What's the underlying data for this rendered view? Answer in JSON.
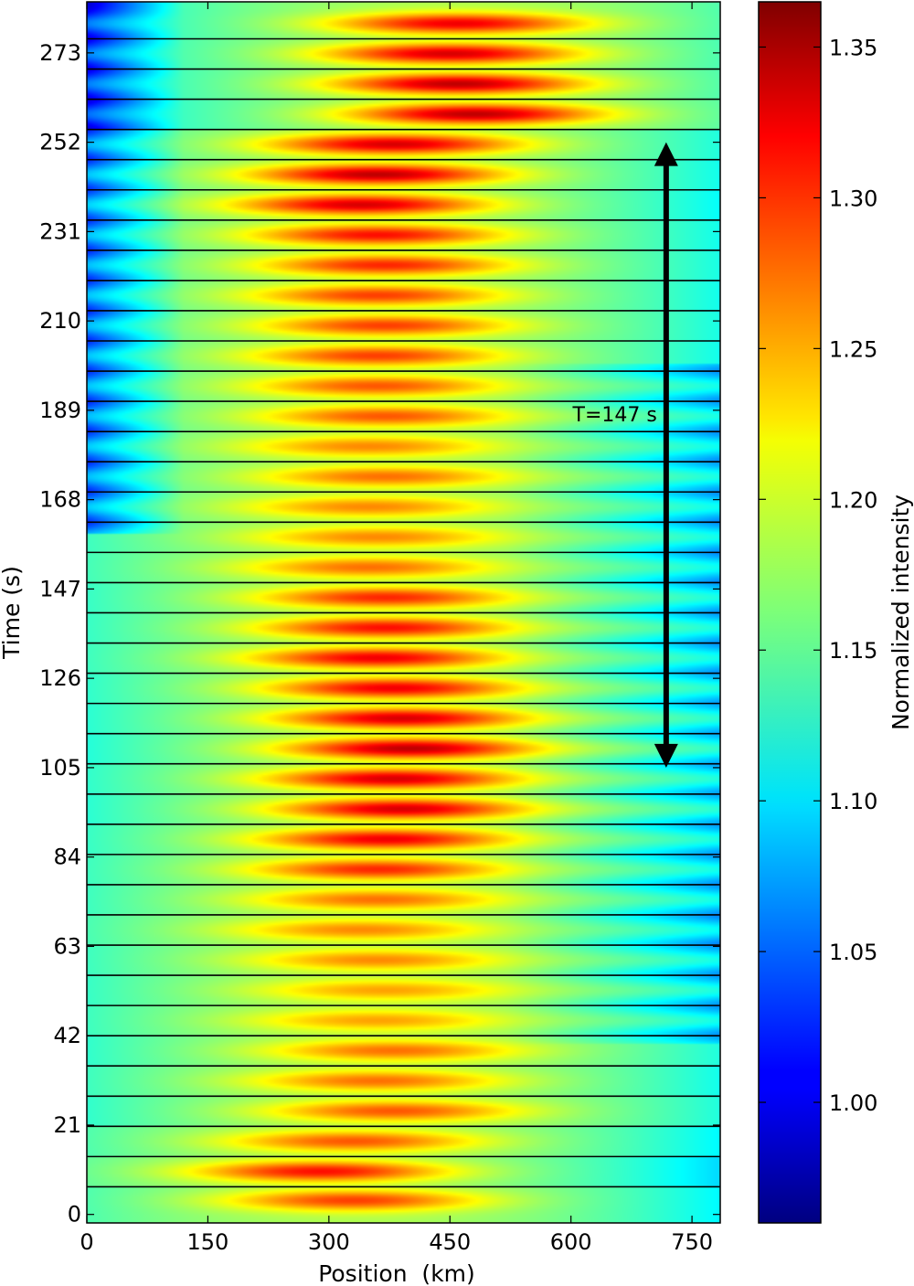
{
  "chart_data": {
    "type": "heatmap",
    "title": "",
    "xlabel": "Position  (km)",
    "ylabel": "Time (s)",
    "xlim": [
      0,
      785
    ],
    "ylim": [
      -2,
      285
    ],
    "x_ticks": [
      0,
      150,
      300,
      450,
      600,
      750
    ],
    "y_ticks": [
      0,
      21,
      42,
      63,
      84,
      105,
      126,
      147,
      168,
      189,
      210,
      231,
      252,
      273
    ],
    "colorbar": {
      "label": "Normalized intensity",
      "range": [
        0.96,
        1.365
      ],
      "ticks": [
        1.0,
        1.05,
        1.1,
        1.15,
        1.2,
        1.25,
        1.3,
        1.35
      ],
      "tick_labels": [
        "1.00",
        "1.05",
        "1.10",
        "1.15",
        "1.20",
        "1.25",
        "1.30",
        "1.35"
      ],
      "colormap": "jet"
    },
    "band_separators": [
      6.5,
      13.6,
      20.7,
      27.8,
      34.9,
      42.0,
      49.1,
      56.2,
      63.3,
      70.4,
      77.5,
      84.6,
      91.7,
      98.8,
      105.9,
      113.0,
      120.1,
      127.2,
      134.3,
      141.4,
      148.5,
      155.6,
      162.7,
      169.8,
      176.9,
      184.0,
      191.1,
      198.2,
      205.3,
      212.4,
      219.5,
      226.6,
      233.7,
      240.8,
      247.9,
      255.0,
      262.1,
      269.2,
      276.3
    ],
    "band_peaks": [
      {
        "t": 3.3,
        "x": 330,
        "peak": 1.29
      },
      {
        "t": 10.1,
        "x": 290,
        "peak": 1.31
      },
      {
        "t": 17.2,
        "x": 330,
        "peak": 1.28
      },
      {
        "t": 24.3,
        "x": 380,
        "peak": 1.28
      },
      {
        "t": 31.4,
        "x": 360,
        "peak": 1.27
      },
      {
        "t": 38.5,
        "x": 380,
        "peak": 1.27
      },
      {
        "t": 45.6,
        "x": 360,
        "peak": 1.25
      },
      {
        "t": 52.7,
        "x": 370,
        "peak": 1.25
      },
      {
        "t": 59.8,
        "x": 360,
        "peak": 1.26
      },
      {
        "t": 66.9,
        "x": 340,
        "peak": 1.26
      },
      {
        "t": 74.0,
        "x": 360,
        "peak": 1.27
      },
      {
        "t": 81.1,
        "x": 360,
        "peak": 1.3
      },
      {
        "t": 88.2,
        "x": 370,
        "peak": 1.32
      },
      {
        "t": 95.3,
        "x": 390,
        "peak": 1.33
      },
      {
        "t": 102.4,
        "x": 380,
        "peak": 1.33
      },
      {
        "t": 109.5,
        "x": 400,
        "peak": 1.34
      },
      {
        "t": 116.6,
        "x": 390,
        "peak": 1.33
      },
      {
        "t": 123.7,
        "x": 380,
        "peak": 1.32
      },
      {
        "t": 130.8,
        "x": 360,
        "peak": 1.32
      },
      {
        "t": 137.9,
        "x": 370,
        "peak": 1.31
      },
      {
        "t": 145.0,
        "x": 370,
        "peak": 1.3
      },
      {
        "t": 152.1,
        "x": 350,
        "peak": 1.27
      },
      {
        "t": 159.2,
        "x": 360,
        "peak": 1.26
      },
      {
        "t": 166.3,
        "x": 350,
        "peak": 1.26
      },
      {
        "t": 173.4,
        "x": 370,
        "peak": 1.27
      },
      {
        "t": 180.5,
        "x": 350,
        "peak": 1.26
      },
      {
        "t": 187.6,
        "x": 370,
        "peak": 1.28
      },
      {
        "t": 194.7,
        "x": 360,
        "peak": 1.28
      },
      {
        "t": 201.8,
        "x": 360,
        "peak": 1.29
      },
      {
        "t": 208.9,
        "x": 370,
        "peak": 1.29
      },
      {
        "t": 216.0,
        "x": 360,
        "peak": 1.29
      },
      {
        "t": 223.1,
        "x": 370,
        "peak": 1.3
      },
      {
        "t": 230.2,
        "x": 360,
        "peak": 1.31
      },
      {
        "t": 237.3,
        "x": 340,
        "peak": 1.33
      },
      {
        "t": 244.4,
        "x": 360,
        "peak": 1.34
      },
      {
        "t": 251.5,
        "x": 380,
        "peak": 1.33
      },
      {
        "t": 258.6,
        "x": 480,
        "peak": 1.34
      },
      {
        "t": 265.7,
        "x": 460,
        "peak": 1.34
      },
      {
        "t": 272.8,
        "x": 450,
        "peak": 1.33
      },
      {
        "t": 279.9,
        "x": 460,
        "peak": 1.32
      }
    ],
    "annotations": [
      {
        "text": "T=147 s",
        "arrow_x": 718,
        "t_start": 105,
        "t_end": 252
      }
    ]
  }
}
